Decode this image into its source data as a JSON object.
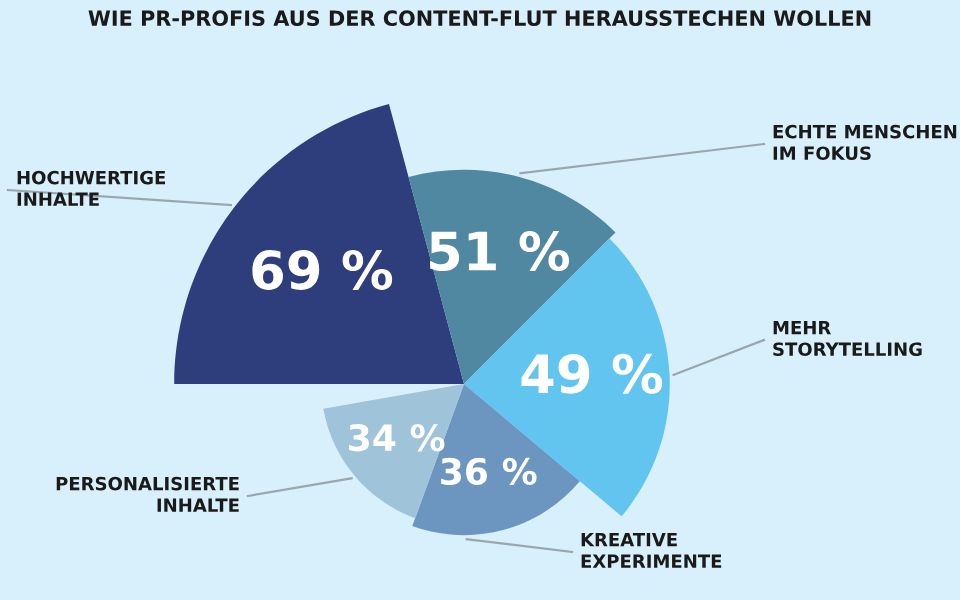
{
  "chart_data": {
    "type": "other",
    "title": "WIE PR-PROFIS AUS DER CONTENT-FLUT HERAUSSTECHEN WOLLEN",
    "categories": [
      "HOCHWERTIGE\nINHALTE",
      "ECHTE MENSCHEN\nIM FOKUS",
      "MEHR\nSTORYTELLING",
      "KREATIVE\nEXPERIMENTE",
      "PERSONALISIERTE\nINHALTE"
    ],
    "values": [
      69,
      51,
      49,
      36,
      34
    ],
    "value_labels": [
      "69 %",
      "51 %",
      "49 %",
      "36 %",
      "34 %"
    ],
    "colors": [
      "#2e3d7c",
      "#4f88a0",
      "#62c5f0",
      "#6c96c0",
      "#9fc3d8"
    ]
  }
}
